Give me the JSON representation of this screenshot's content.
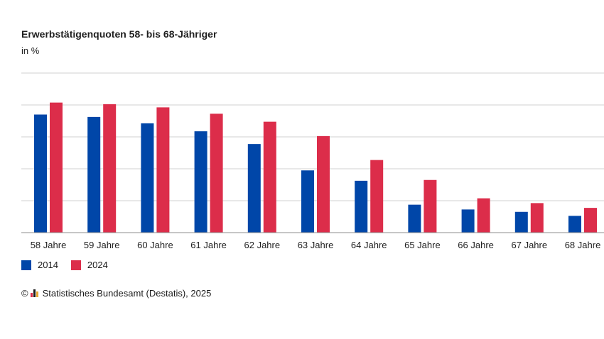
{
  "chart_data": {
    "type": "bar",
    "title": "Erwerbstätigenquoten 58- bis 68-Jähriger",
    "subtitle": "in %",
    "categories": [
      "58 Jahre",
      "59 Jahre",
      "60 Jahre",
      "61 Jahre",
      "62 Jahre",
      "63 Jahre",
      "64 Jahre",
      "65 Jahre",
      "66 Jahre",
      "67 Jahre",
      "68 Jahre"
    ],
    "series": [
      {
        "name": "2014",
        "color": "#0046a8",
        "values": [
          74,
          72.5,
          68.5,
          63.5,
          55.5,
          39,
          32.5,
          17.5,
          14.5,
          13,
          10.5
        ]
      },
      {
        "name": "2024",
        "color": "#dc2d4a",
        "values": [
          81.5,
          80.5,
          78.5,
          74.5,
          69.5,
          60.5,
          45.5,
          33,
          21.5,
          18.5,
          15.5
        ]
      }
    ],
    "ylim": [
      0,
      100
    ],
    "grid": true,
    "legend": "bottom-left"
  },
  "footer": {
    "copyright_symbol": "©",
    "source_text": "Statistisches Bundesamt (Destatis), 2025"
  }
}
